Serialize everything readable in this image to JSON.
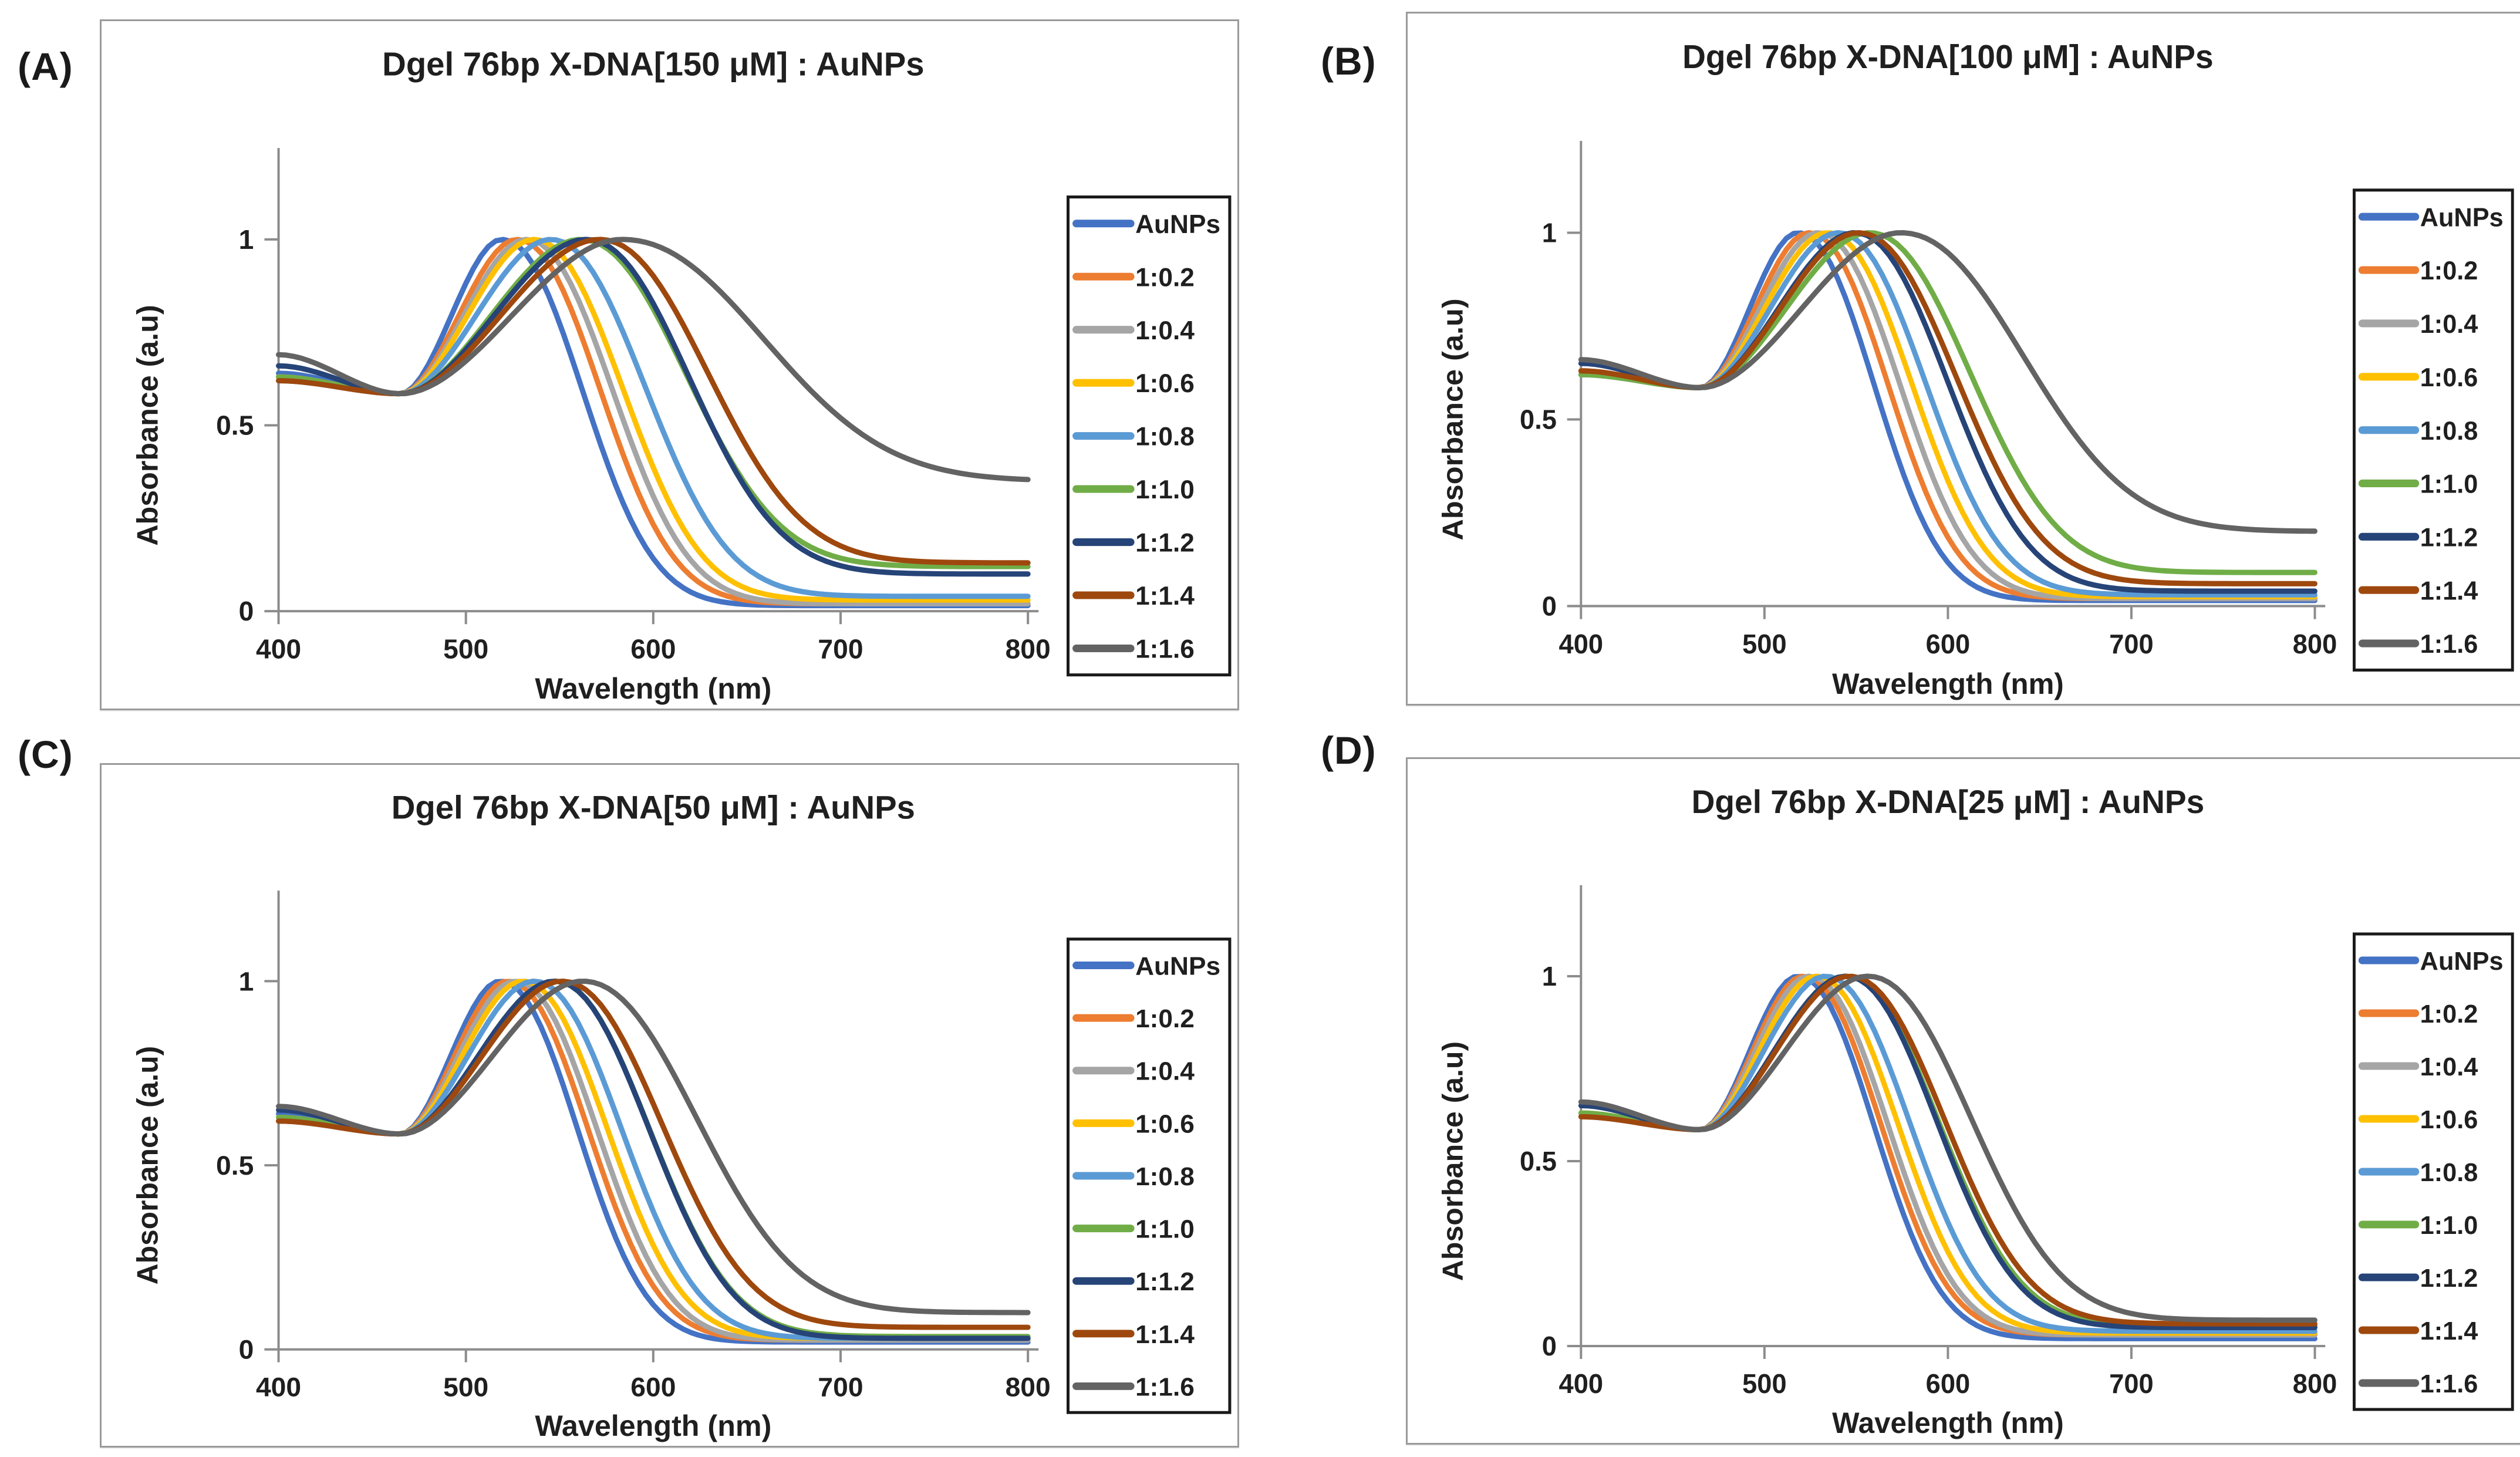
{
  "figure": {
    "description": "UV-Vis absorbance spectra of AuNPs mixed with Dgel 76bp X-DNA at varying ratios, four concentration panels",
    "panels": [
      {
        "label": "(A)",
        "title": "Dgel 76bp X-DNA[150 μM] : AuNPs"
      },
      {
        "label": "(B)",
        "title": "Dgel 76bp X-DNA[100 μM] : AuNPs"
      },
      {
        "label": "(C)",
        "title": "Dgel 76bp X-DNA[50 μM] : AuNPs"
      },
      {
        "label": "(D)",
        "title": "Dgel 76bp X-DNA[25 μM] : AuNPs"
      }
    ],
    "colors": {
      "axis": "#8c8c8c",
      "text": "#1f1f1f",
      "legend_border": "#1a1a1a",
      "panel_border": "#9a9a9a"
    }
  },
  "chart_data": [
    {
      "type": "line",
      "title": "Dgel 76bp X-DNA[150 μM] : AuNPs",
      "xlabel": "Wavelength (nm)",
      "ylabel": "Absorbance (a.u)",
      "xlim": [
        400,
        800
      ],
      "ylim": [
        0,
        1.25
      ],
      "x_ticks": [
        "400",
        "500",
        "600",
        "700",
        "800"
      ],
      "y_ticks": [
        "0",
        "0.5",
        "1"
      ],
      "y_tick_values": [
        0,
        0.5,
        1
      ],
      "grid": false,
      "legend_position": "right",
      "normalized_peak_absorbance": 1.0,
      "series": [
        {
          "name": "AuNPs",
          "color": "#4472C4",
          "peak_nm": 519,
          "abs_400": 0.64,
          "abs_800": 0.015,
          "right_width_nm": 58
        },
        {
          "name": "1:0.2",
          "color": "#ED7D31",
          "peak_nm": 527,
          "abs_400": 0.62,
          "abs_800": 0.02,
          "right_width_nm": 60
        },
        {
          "name": "1:0.4",
          "color": "#A5A5A5",
          "peak_nm": 532,
          "abs_400": 0.63,
          "abs_800": 0.02,
          "right_width_nm": 62
        },
        {
          "name": "1:0.6",
          "color": "#FFC000",
          "peak_nm": 536,
          "abs_400": 0.63,
          "abs_800": 0.03,
          "right_width_nm": 64
        },
        {
          "name": "1:0.8",
          "color": "#5B9BD5",
          "peak_nm": 545,
          "abs_400": 0.62,
          "abs_800": 0.04,
          "right_width_nm": 68
        },
        {
          "name": "1:1.0",
          "color": "#70AD47",
          "peak_nm": 561,
          "abs_400": 0.63,
          "abs_800": 0.12,
          "right_width_nm": 76
        },
        {
          "name": "1:1.2",
          "color": "#264478",
          "peak_nm": 564,
          "abs_400": 0.66,
          "abs_800": 0.1,
          "right_width_nm": 74
        },
        {
          "name": "1:1.4",
          "color": "#9E480E",
          "peak_nm": 571,
          "abs_400": 0.62,
          "abs_800": 0.13,
          "right_width_nm": 78
        },
        {
          "name": "1:1.6",
          "color": "#636363",
          "peak_nm": 583,
          "abs_400": 0.69,
          "abs_800": 0.35,
          "right_width_nm": 102
        }
      ]
    },
    {
      "type": "line",
      "title": "Dgel 76bp X-DNA[100 μM] : AuNPs",
      "xlabel": "Wavelength (nm)",
      "ylabel": "Absorbance (a.u)",
      "xlim": [
        400,
        800
      ],
      "ylim": [
        0,
        1.25
      ],
      "x_ticks": [
        "400",
        "500",
        "600",
        "700",
        "800"
      ],
      "y_ticks": [
        "0",
        "0.5",
        "1"
      ],
      "y_tick_values": [
        0,
        0.5,
        1
      ],
      "grid": false,
      "legend_position": "right",
      "normalized_peak_absorbance": 1.0,
      "series": [
        {
          "name": "AuNPs",
          "color": "#4472C4",
          "peak_nm": 518,
          "abs_400": 0.63,
          "abs_800": 0.015,
          "right_width_nm": 56
        },
        {
          "name": "1:0.2",
          "color": "#ED7D31",
          "peak_nm": 524,
          "abs_400": 0.62,
          "abs_800": 0.02,
          "right_width_nm": 58
        },
        {
          "name": "1:0.4",
          "color": "#A5A5A5",
          "peak_nm": 529,
          "abs_400": 0.63,
          "abs_800": 0.02,
          "right_width_nm": 60
        },
        {
          "name": "1:0.6",
          "color": "#FFC000",
          "peak_nm": 534,
          "abs_400": 0.63,
          "abs_800": 0.025,
          "right_width_nm": 62
        },
        {
          "name": "1:0.8",
          "color": "#5B9BD5",
          "peak_nm": 540,
          "abs_400": 0.62,
          "abs_800": 0.03,
          "right_width_nm": 64
        },
        {
          "name": "1:1.0",
          "color": "#70AD47",
          "peak_nm": 557,
          "abs_400": 0.62,
          "abs_800": 0.09,
          "right_width_nm": 74
        },
        {
          "name": "1:1.2",
          "color": "#264478",
          "peak_nm": 549,
          "abs_400": 0.65,
          "abs_800": 0.04,
          "right_width_nm": 68
        },
        {
          "name": "1:1.4",
          "color": "#9E480E",
          "peak_nm": 551,
          "abs_400": 0.63,
          "abs_800": 0.06,
          "right_width_nm": 72
        },
        {
          "name": "1:1.6",
          "color": "#636363",
          "peak_nm": 574,
          "abs_400": 0.66,
          "abs_800": 0.2,
          "right_width_nm": 90
        }
      ]
    },
    {
      "type": "line",
      "title": "Dgel 76bp X-DNA[50 μM] : AuNPs",
      "xlabel": "Wavelength (nm)",
      "ylabel": "Absorbance (a.u)",
      "xlim": [
        400,
        800
      ],
      "ylim": [
        0,
        1.25
      ],
      "x_ticks": [
        "400",
        "500",
        "600",
        "700",
        "800"
      ],
      "y_ticks": [
        "0",
        "0.5",
        "1"
      ],
      "y_tick_values": [
        0,
        0.5,
        1
      ],
      "grid": false,
      "legend_position": "right",
      "normalized_peak_absorbance": 1.0,
      "series": [
        {
          "name": "AuNPs",
          "color": "#4472C4",
          "peak_nm": 518,
          "abs_400": 0.64,
          "abs_800": 0.02,
          "right_width_nm": 56
        },
        {
          "name": "1:0.2",
          "color": "#ED7D31",
          "peak_nm": 522,
          "abs_400": 0.62,
          "abs_800": 0.025,
          "right_width_nm": 58
        },
        {
          "name": "1:0.4",
          "color": "#A5A5A5",
          "peak_nm": 526,
          "abs_400": 0.63,
          "abs_800": 0.025,
          "right_width_nm": 59
        },
        {
          "name": "1:0.6",
          "color": "#FFC000",
          "peak_nm": 530,
          "abs_400": 0.63,
          "abs_800": 0.03,
          "right_width_nm": 61
        },
        {
          "name": "1:0.8",
          "color": "#5B9BD5",
          "peak_nm": 536,
          "abs_400": 0.62,
          "abs_800": 0.03,
          "right_width_nm": 63
        },
        {
          "name": "1:1.0",
          "color": "#70AD47",
          "peak_nm": 547,
          "abs_400": 0.63,
          "abs_800": 0.035,
          "right_width_nm": 68
        },
        {
          "name": "1:1.2",
          "color": "#264478",
          "peak_nm": 547,
          "abs_400": 0.65,
          "abs_800": 0.03,
          "right_width_nm": 68
        },
        {
          "name": "1:1.4",
          "color": "#9E480E",
          "peak_nm": 551,
          "abs_400": 0.62,
          "abs_800": 0.06,
          "right_width_nm": 72
        },
        {
          "name": "1:1.6",
          "color": "#636363",
          "peak_nm": 562,
          "abs_400": 0.66,
          "abs_800": 0.1,
          "right_width_nm": 82
        }
      ]
    },
    {
      "type": "line",
      "title": "Dgel 76bp X-DNA[25 μM] : AuNPs",
      "xlabel": "Wavelength (nm)",
      "ylabel": "Absorbance (a.u)",
      "xlim": [
        400,
        800
      ],
      "ylim": [
        0,
        1.25
      ],
      "x_ticks": [
        "400",
        "500",
        "600",
        "700",
        "800"
      ],
      "y_ticks": [
        "0",
        "0.5",
        "1"
      ],
      "y_tick_values": [
        0,
        0.5,
        1
      ],
      "grid": false,
      "legend_position": "right",
      "normalized_peak_absorbance": 1.0,
      "series": [
        {
          "name": "AuNPs",
          "color": "#4472C4",
          "peak_nm": 518,
          "abs_400": 0.63,
          "abs_800": 0.02,
          "right_width_nm": 56
        },
        {
          "name": "1:0.2",
          "color": "#ED7D31",
          "peak_nm": 521,
          "abs_400": 0.62,
          "abs_800": 0.03,
          "right_width_nm": 57
        },
        {
          "name": "1:0.4",
          "color": "#A5A5A5",
          "peak_nm": 524,
          "abs_400": 0.63,
          "abs_800": 0.03,
          "right_width_nm": 58
        },
        {
          "name": "1:0.6",
          "color": "#FFC000",
          "peak_nm": 528,
          "abs_400": 0.63,
          "abs_800": 0.035,
          "right_width_nm": 60
        },
        {
          "name": "1:0.8",
          "color": "#5B9BD5",
          "peak_nm": 533,
          "abs_400": 0.62,
          "abs_800": 0.04,
          "right_width_nm": 62
        },
        {
          "name": "1:1.0",
          "color": "#70AD47",
          "peak_nm": 544,
          "abs_400": 0.63,
          "abs_800": 0.055,
          "right_width_nm": 68
        },
        {
          "name": "1:1.2",
          "color": "#264478",
          "peak_nm": 544,
          "abs_400": 0.65,
          "abs_800": 0.05,
          "right_width_nm": 67
        },
        {
          "name": "1:1.4",
          "color": "#9E480E",
          "peak_nm": 546,
          "abs_400": 0.62,
          "abs_800": 0.06,
          "right_width_nm": 70
        },
        {
          "name": "1:1.6",
          "color": "#636363",
          "peak_nm": 556,
          "abs_400": 0.66,
          "abs_800": 0.07,
          "right_width_nm": 76
        }
      ]
    }
  ]
}
